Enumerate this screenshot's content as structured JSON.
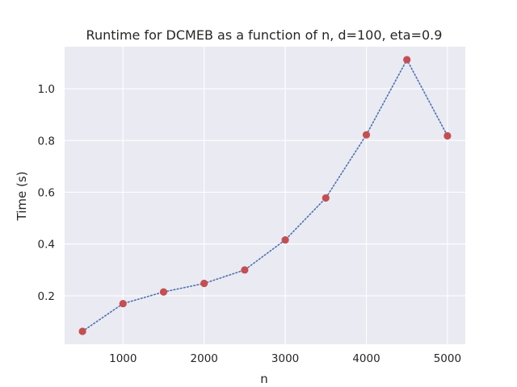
{
  "chart_data": {
    "type": "line",
    "title": "Runtime for DCMEB as a function of n, d=100, eta=0.9",
    "xlabel": "n",
    "ylabel": "Time (s)",
    "x": [
      500,
      1000,
      1500,
      2000,
      2500,
      3000,
      3500,
      4000,
      4500,
      5000
    ],
    "series": [
      {
        "values": [
          0.063,
          0.17,
          0.215,
          0.248,
          0.3,
          0.416,
          0.578,
          0.822,
          1.112,
          0.818
        ],
        "line_color": "#4c72b0",
        "line_style": "dotted",
        "marker_color": "#c44e52"
      }
    ],
    "xlim": [
      280,
      5220
    ],
    "ylim": [
      0.013,
      1.162
    ],
    "xticks": [
      1000,
      2000,
      3000,
      4000,
      5000
    ],
    "xtick_labels": [
      "1000",
      "2000",
      "3000",
      "4000",
      "5000"
    ],
    "yticks": [
      0.2,
      0.4,
      0.6,
      0.8,
      1.0
    ],
    "ytick_labels": [
      "0.2",
      "0.4",
      "0.6",
      "0.8",
      "1.0"
    ],
    "grid": true,
    "background": "#eaeaf2",
    "grid_color": "#ffffff"
  }
}
